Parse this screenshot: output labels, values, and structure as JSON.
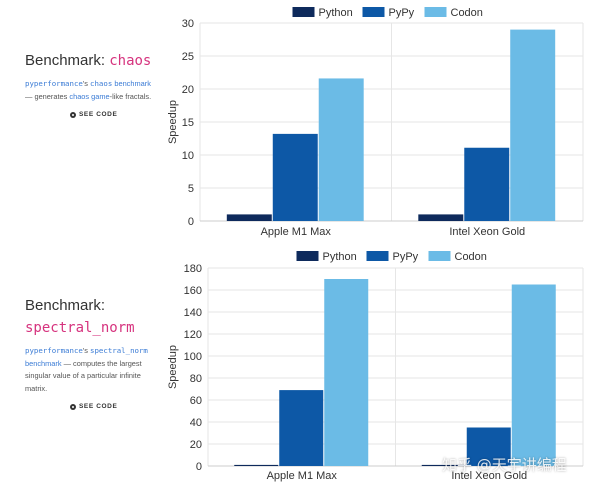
{
  "benchmarks": [
    {
      "title_prefix": "Benchmark:",
      "name": "chaos",
      "lib_name": "pyperformance",
      "possessive": "'s",
      "mono_name": "chaos",
      "link_word": "benchmark",
      "dash": " —",
      "desc_part1": "generates",
      "desc_link": "chaos game",
      "desc_part2": "-like fractals.",
      "see_code": "SEE CODE"
    },
    {
      "title_prefix": "Benchmark:",
      "name": "spectral_norm",
      "lib_name": "pyperformance",
      "possessive": "'s",
      "mono_name": "spectral_norm",
      "link_word": "benchmark",
      "desc_rest": " — computes the largest singular value of a particular infinite matrix.",
      "see_code": "SEE CODE"
    }
  ],
  "colors": {
    "python": "#0e2a5c",
    "pypy": "#0d58a6",
    "codon": "#6bbbe6",
    "grid": "#e6e6e6",
    "axis": "#888888"
  },
  "watermark": "知乎 @天宇讲编程",
  "chart_data": [
    {
      "type": "bar",
      "categories": [
        "Apple M1 Max",
        "Intel Xeon Gold"
      ],
      "series": [
        {
          "name": "Python",
          "values": [
            1,
            1
          ]
        },
        {
          "name": "PyPy",
          "values": [
            13.2,
            11.1
          ]
        },
        {
          "name": "Codon",
          "values": [
            21.6,
            29
          ]
        }
      ],
      "ylabel": "Speedup",
      "ylim": [
        0,
        30
      ],
      "yticks": [
        0,
        5,
        10,
        15,
        20,
        25,
        30
      ],
      "legend": "top"
    },
    {
      "type": "bar",
      "categories": [
        "Apple M1 Max",
        "Intel Xeon Gold"
      ],
      "series": [
        {
          "name": "Python",
          "values": [
            1,
            1
          ]
        },
        {
          "name": "PyPy",
          "values": [
            69,
            35
          ]
        },
        {
          "name": "Codon",
          "values": [
            170,
            165
          ]
        }
      ],
      "ylabel": "Speedup",
      "ylim": [
        0,
        180
      ],
      "yticks": [
        0,
        20,
        40,
        60,
        80,
        100,
        120,
        140,
        160,
        180
      ],
      "legend": "top"
    }
  ]
}
